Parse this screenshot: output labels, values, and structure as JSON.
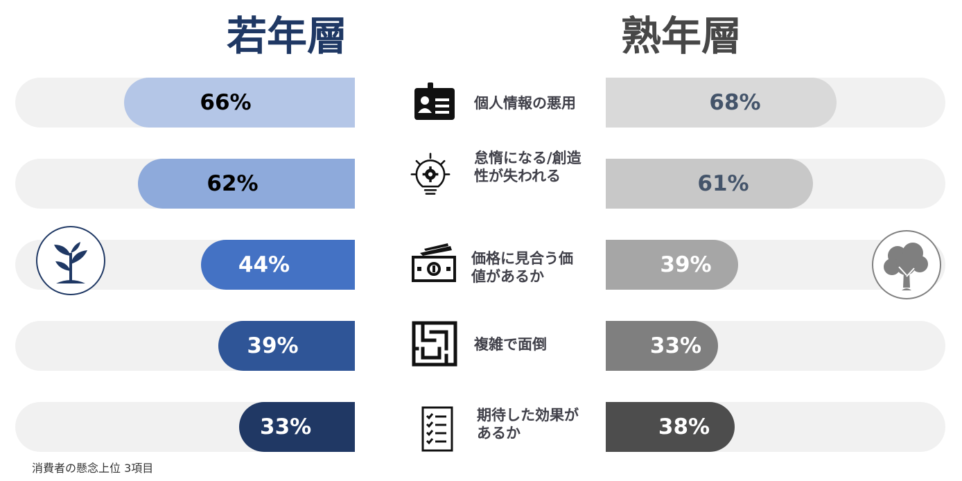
{
  "chart_data": {
    "type": "bar",
    "layout": "diverging",
    "categories": [
      "個人情報の悪用",
      "怠惰になる/創造性が失われる",
      "価格に見合う価値があるか",
      "複雑で面倒",
      "期待した効果があるか"
    ],
    "category_lines": [
      [
        "個人情報の悪用"
      ],
      [
        "怠惰になる/創造",
        "性が失われる"
      ],
      [
        "価格に見合う価",
        "値があるか"
      ],
      [
        "複雑で面倒"
      ],
      [
        "期待した効果が",
        "あるか"
      ]
    ],
    "series": [
      {
        "name": "若年層",
        "values": [
          66,
          62,
          44,
          39,
          33
        ],
        "labels": [
          "66%",
          "62%",
          "44%",
          "39%",
          "33%"
        ],
        "colors": [
          "#b4c6e7",
          "#8eaadb",
          "#4472c4",
          "#2f5597",
          "#203864"
        ],
        "label_colors": [
          "#000000",
          "#000000",
          "#ffffff",
          "#ffffff",
          "#ffffff"
        ]
      },
      {
        "name": "熟年層",
        "values": [
          68,
          61,
          39,
          33,
          38
        ],
        "labels": [
          "68%",
          "61%",
          "39%",
          "33%",
          "38%"
        ],
        "colors": [
          "#d9d9d9",
          "#c8c8c8",
          "#a6a6a6",
          "#7f7f7f",
          "#4d4d4d"
        ],
        "label_colors": [
          "#44546a",
          "#44546a",
          "#ffffff",
          "#ffffff",
          "#ffffff"
        ]
      }
    ],
    "header_colors": [
      "#1f3864",
      "#474747"
    ],
    "icons": [
      "id-card-icon",
      "lightbulb-gear-icon",
      "money-bill-icon",
      "maze-icon",
      "checklist-icon"
    ],
    "badges": [
      "sprout-icon",
      "tree-icon"
    ],
    "xlim": [
      0,
      100
    ],
    "grid": false,
    "legend": "none",
    "footnote": "消費者の懸念上位 3項目"
  }
}
